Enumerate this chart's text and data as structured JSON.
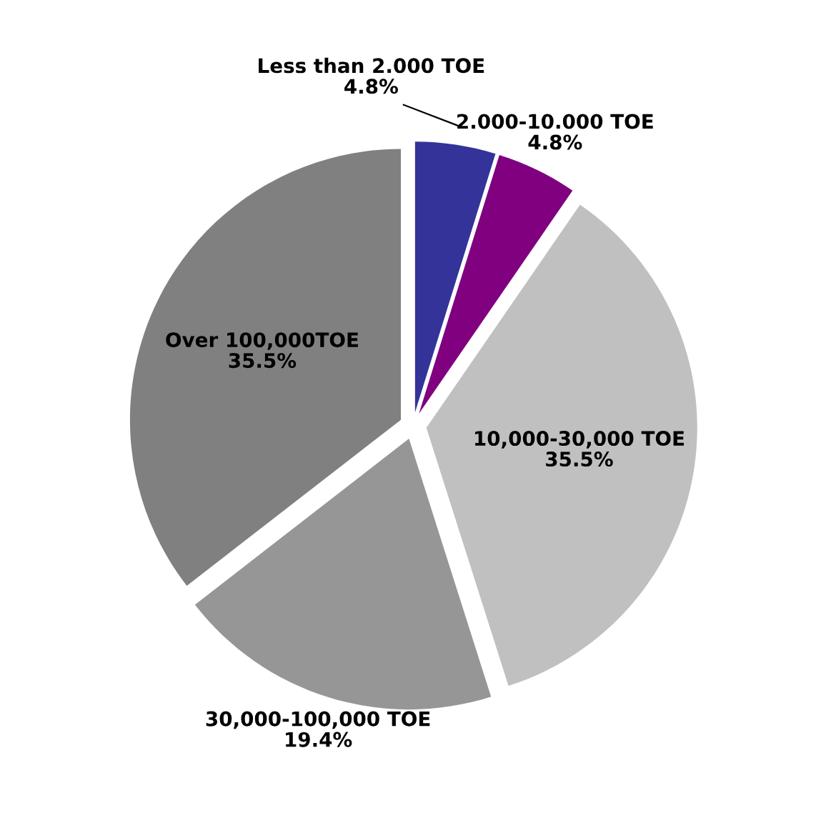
{
  "chart_data": {
    "type": "pie",
    "categories": [
      "Less than 2.000 TOE",
      "2.000-10.000 TOE",
      "10,000-30,000 TOE",
      "30,000-100,000 TOE",
      "Over 100,000TOE"
    ],
    "values": [
      4.8,
      4.8,
      35.5,
      19.4,
      35.5
    ],
    "colors": [
      "#333399",
      "#800080",
      "#c0c0c0",
      "#969696",
      "#808080"
    ],
    "value_labels": [
      "4.8%",
      "4.8%",
      "35.5%",
      "19.4%",
      "35.5%"
    ]
  }
}
